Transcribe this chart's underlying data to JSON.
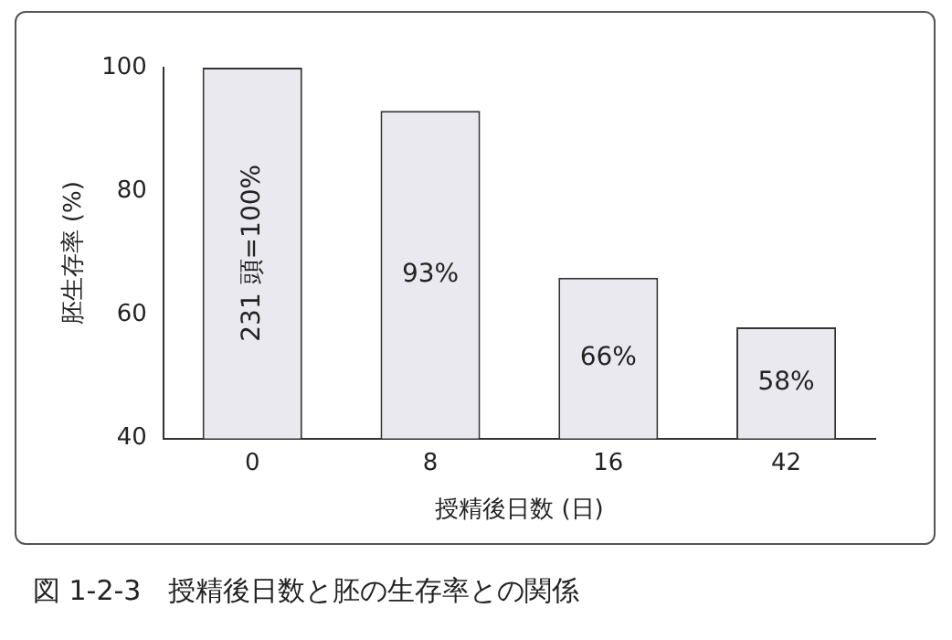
{
  "chart_data": {
    "type": "bar",
    "ylabel": "胚生存率 (%)",
    "xlabel": "授精後日数 (日)",
    "categories": [
      "0",
      "8",
      "16",
      "42"
    ],
    "values": [
      100,
      93,
      66,
      58
    ],
    "value_labels": [
      "231 頭=100%",
      "93%",
      "66%",
      "58%"
    ],
    "color": "#e9e9ef",
    "ylim": [
      40,
      100
    ],
    "yticks": [
      40,
      60,
      80,
      100
    ],
    "grid": false,
    "legend": false,
    "annotations": [
      "図 1-2-3　授精後日数と胚の生存率との関係"
    ]
  }
}
